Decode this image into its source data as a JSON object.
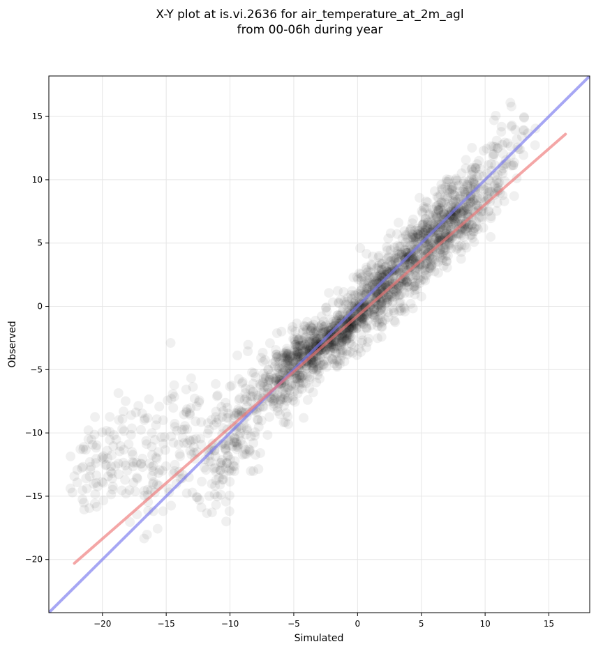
{
  "chart_data": {
    "type": "scatter",
    "title_lines": [
      "X-Y plot at is.vi.2636 for air_temperature_at_2m_agl",
      "from 00-06h during year"
    ],
    "xlabel": "Simulated",
    "ylabel": "Observed",
    "xlim": [
      -24.2,
      18.2
    ],
    "ylim": [
      -24.2,
      18.2
    ],
    "x_ticks": [
      -20,
      -15,
      -10,
      -5,
      0,
      5,
      10,
      15
    ],
    "y_ticks": [
      -20,
      -15,
      -10,
      -5,
      0,
      5,
      10,
      15
    ],
    "x_tick_labels": [
      "−20",
      "−15",
      "−10",
      "−5",
      "0",
      "5",
      "10",
      "15"
    ],
    "y_tick_labels": [
      "−20",
      "−15",
      "−10",
      "−5",
      "0",
      "5",
      "10",
      "15"
    ],
    "grid": true,
    "point_color": "#000000",
    "point_opacity": 0.06,
    "point_radius": 7,
    "cloud": {
      "description_points": "Dense band following the fit; scattered spread between simulated -22 and 16",
      "center_points": [
        [
          -22,
          -13.5
        ],
        [
          -21,
          -12.5
        ],
        [
          -20,
          -12
        ],
        [
          -19,
          -11.5
        ],
        [
          -18,
          -11.5
        ],
        [
          -17,
          -12.5
        ],
        [
          -16,
          -12.5
        ],
        [
          -15,
          -12.5
        ],
        [
          -14,
          -11.5
        ],
        [
          -13,
          -10.5
        ],
        [
          -12,
          -10.5
        ],
        [
          -11,
          -11.5
        ],
        [
          -10,
          -11
        ],
        [
          -9,
          -9.5
        ],
        [
          -8,
          -8
        ],
        [
          -7,
          -6.5
        ],
        [
          -6,
          -5.5
        ],
        [
          -5,
          -4.5
        ],
        [
          -4,
          -3.8
        ],
        [
          -3,
          -3.2
        ],
        [
          -2,
          -2.5
        ],
        [
          -1,
          -1.8
        ],
        [
          0,
          -0.7
        ],
        [
          1,
          0.5
        ],
        [
          2,
          1.5
        ],
        [
          3,
          2.5
        ],
        [
          4,
          3.5
        ],
        [
          5,
          4.5
        ],
        [
          6,
          5.5
        ],
        [
          7,
          6.5
        ],
        [
          8,
          7.5
        ],
        [
          9,
          8.5
        ],
        [
          10,
          9.5
        ],
        [
          11,
          11
        ],
        [
          12,
          12.5
        ],
        [
          13,
          14
        ]
      ],
      "spread": [
        2.5,
        2.5,
        2.8,
        3,
        3,
        3,
        3,
        3,
        3,
        3,
        3,
        3,
        2.8,
        2.4,
        2.2,
        2,
        1.8,
        1.5,
        1.3,
        1.2,
        1.2,
        1.3,
        1.5,
        1.6,
        1.7,
        1.8,
        1.8,
        1.8,
        1.8,
        1.8,
        1.8,
        1.9,
        2,
        2,
        2,
        1.5
      ]
    },
    "series": [
      {
        "type": "reference_line",
        "color": "#7777ee",
        "points": [
          [
            -24.2,
            -24.2
          ],
          [
            18.2,
            18.2
          ]
        ]
      },
      {
        "type": "fit_line",
        "color": "#ee7777",
        "points": [
          [
            -22.2,
            -20.3
          ],
          [
            16.3,
            13.6
          ]
        ]
      }
    ]
  }
}
